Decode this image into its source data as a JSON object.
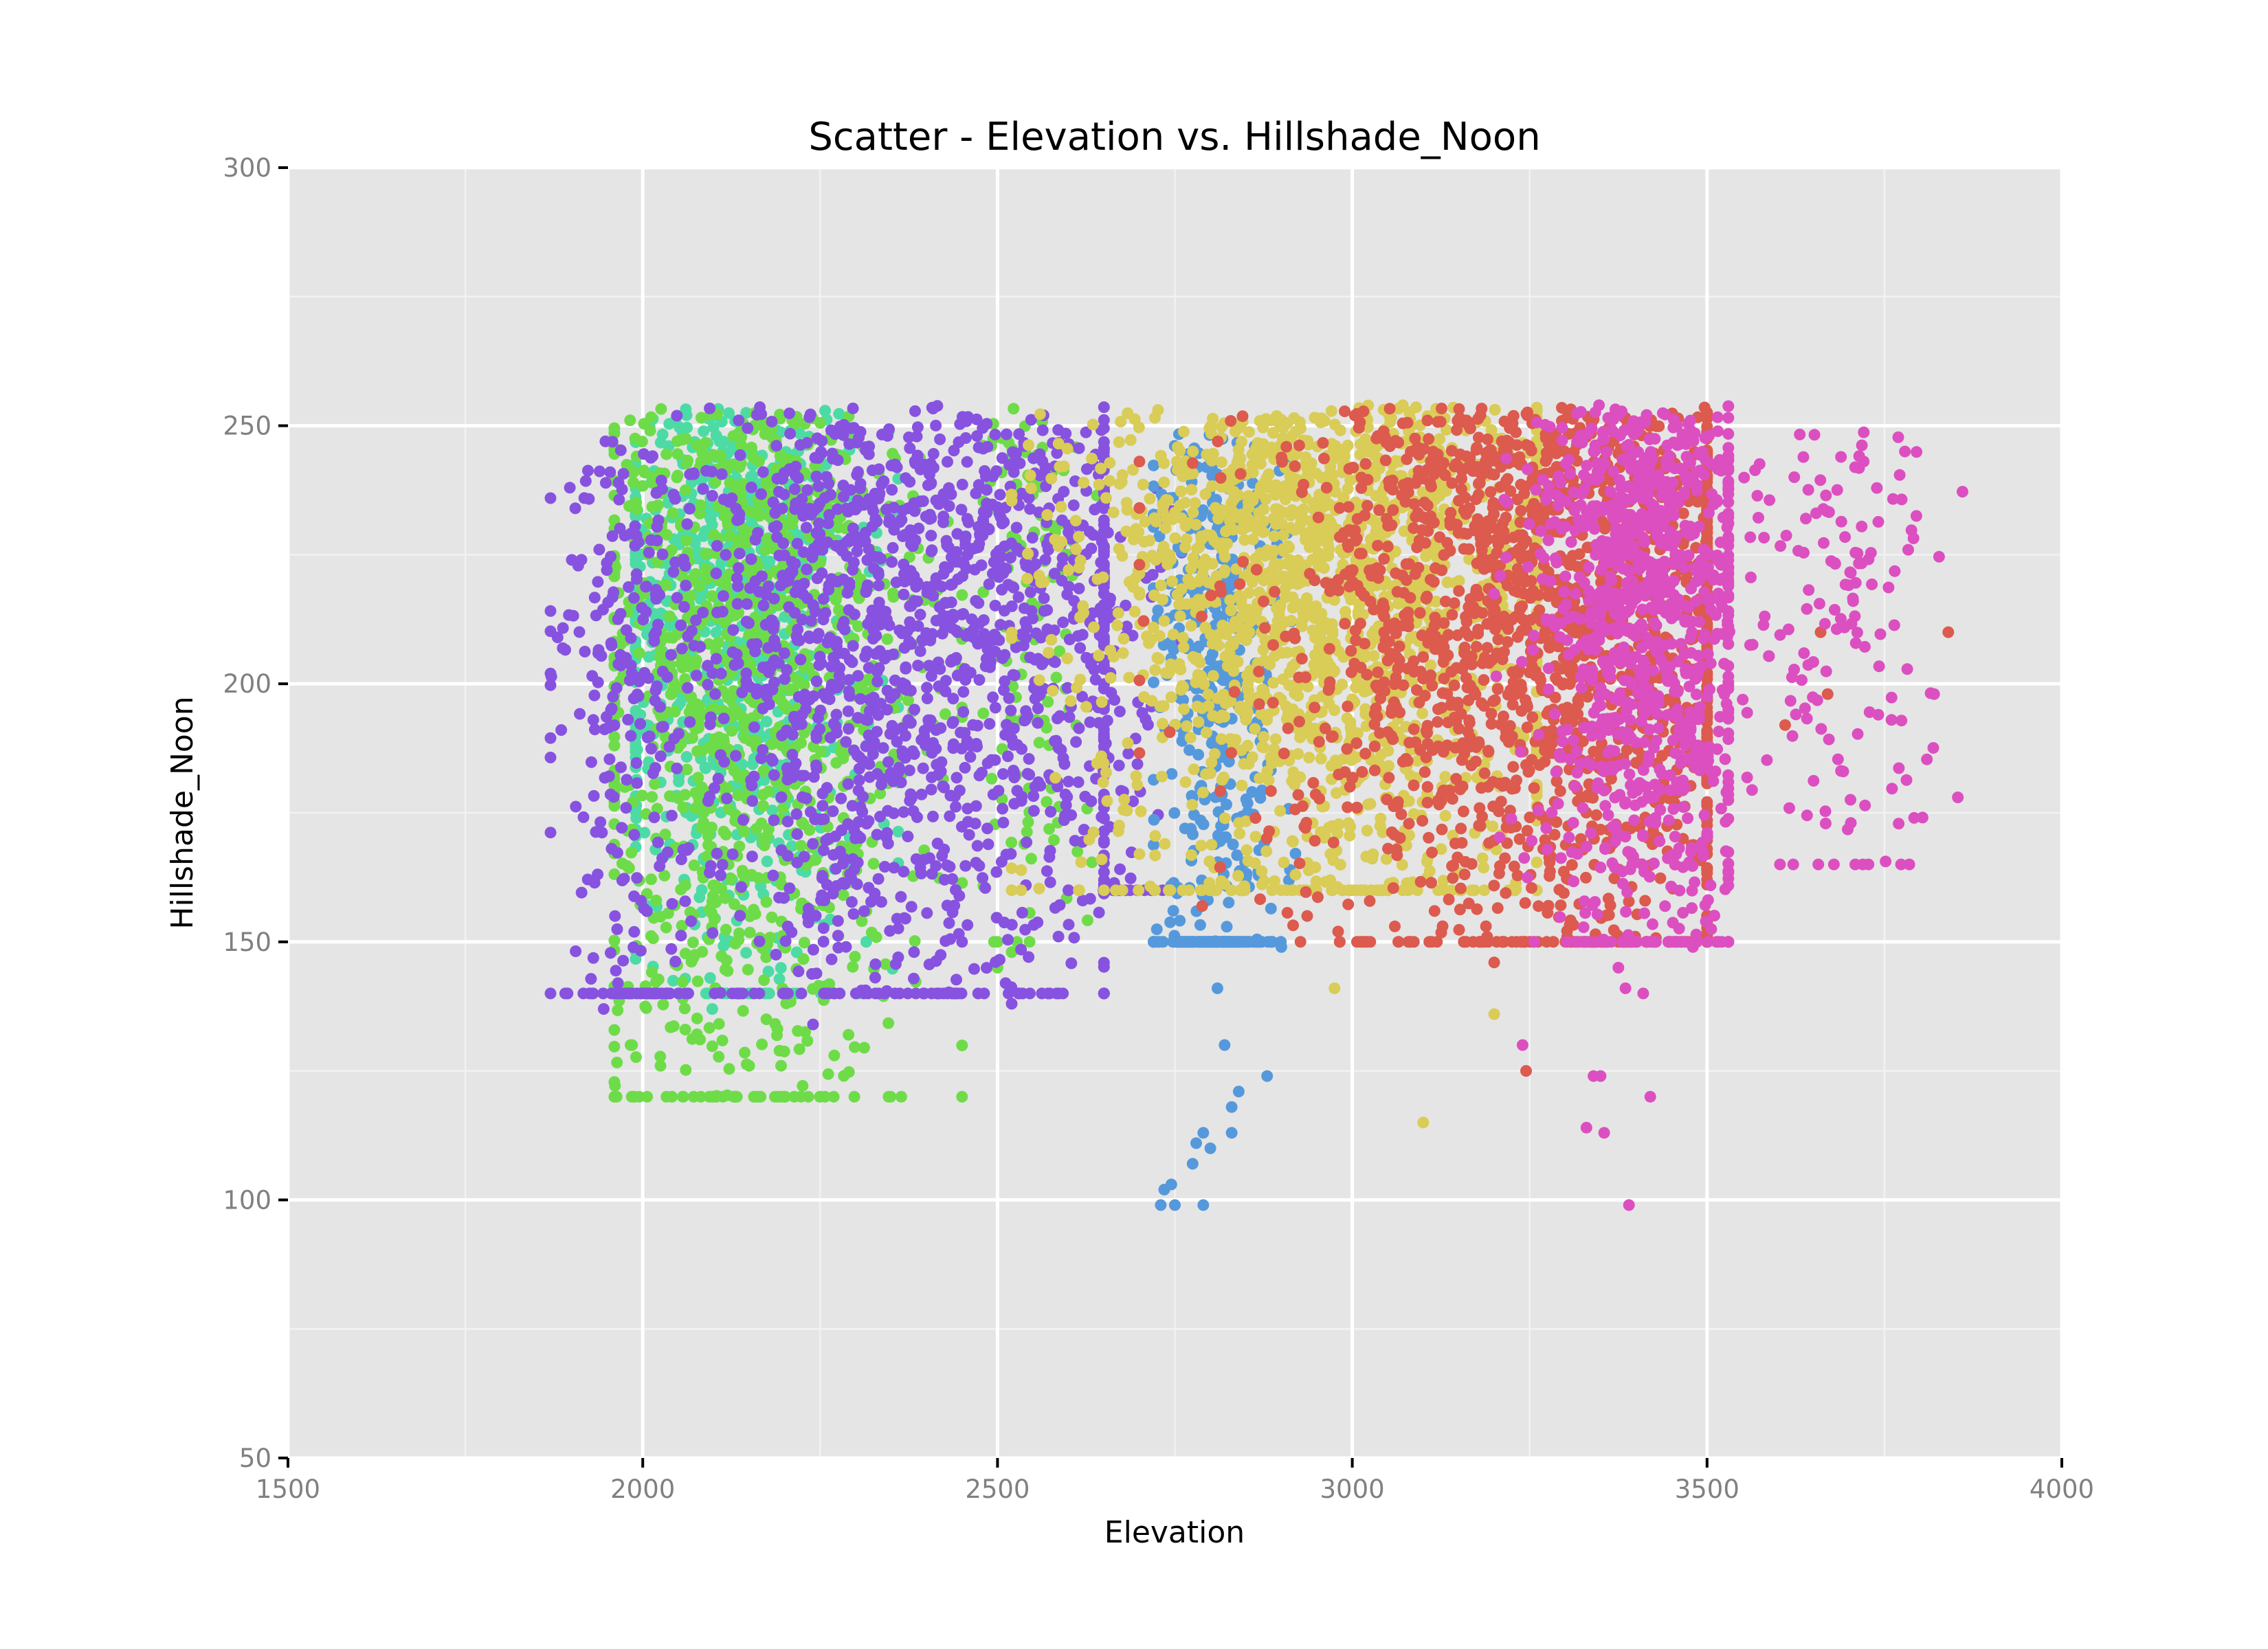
{
  "chart_data": {
    "type": "scatter",
    "title": "Scatter - Elevation vs. Hillshade_Noon",
    "xlabel": "Elevation",
    "ylabel": "Hillshade_Noon",
    "xlim": [
      1500,
      4000
    ],
    "ylim": [
      50,
      300
    ],
    "x_ticks": [
      1500,
      2000,
      2500,
      3000,
      3500,
      4000
    ],
    "y_ticks": [
      50,
      100,
      150,
      200,
      250,
      300
    ],
    "grid": true,
    "legend": "none",
    "colors": {
      "panel_background": "#e5e5e5",
      "grid_major": "#ffffff",
      "grid_minor": "#f2f2f2",
      "tick_mark": "#000000"
    },
    "series": [
      {
        "color": "#4cdba4",
        "clusters": [
          {
            "x": [
              1990,
              2360
            ],
            "y": [
              140,
              254
            ],
            "count": 800,
            "x_center": 2120,
            "y_center": 225
          }
        ],
        "points": [
          [
            2095,
            143
          ],
          [
            2098,
            137
          ],
          [
            2315,
            150
          ],
          [
            2005,
            232
          ],
          [
            2000,
            228
          ]
        ]
      },
      {
        "color": "#6edc48",
        "clusters": [
          {
            "x": [
              1960,
              2450
            ],
            "y": [
              120,
              254
            ],
            "count": 1100,
            "x_center": 2150,
            "y_center": 215
          },
          {
            "x": [
              2480,
              2640
            ],
            "y": [
              150,
              254
            ],
            "count": 120,
            "x_center": 2540,
            "y_center": 230
          }
        ],
        "points": [
          [
            1995,
            120
          ],
          [
            2025,
            126
          ],
          [
            1985,
            130
          ],
          [
            2270,
            128
          ],
          [
            2195,
            126
          ],
          [
            2150,
            126
          ],
          [
            2500,
            145
          ],
          [
            2520,
            148
          ],
          [
            2290,
            132
          ],
          [
            2060,
            133
          ]
        ]
      },
      {
        "color": "#8752e0",
        "clusters": [
          {
            "x": [
              1870,
              2650
            ],
            "y": [
              140,
              254
            ],
            "count": 1500,
            "x_center": 2380,
            "y_center": 215
          },
          {
            "x": [
              1870,
              2060
            ],
            "y": [
              140,
              250
            ],
            "count": 180,
            "x_center": 1980,
            "y_center": 185
          },
          {
            "x": [
              2600,
              2780
            ],
            "y": [
              160,
              240
            ],
            "count": 90,
            "x_center": 2670,
            "y_center": 195
          }
        ],
        "points": [
          [
            1870,
            202
          ],
          [
            1880,
            209
          ],
          [
            1900,
            224
          ],
          [
            1905,
            234
          ],
          [
            1945,
            137
          ],
          [
            1965,
            142
          ],
          [
            2240,
            134
          ],
          [
            2520,
            138
          ],
          [
            2360,
            147
          ],
          [
            2450,
            150
          ],
          [
            2620,
            158
          ]
        ]
      },
      {
        "color": "#5599dc",
        "clusters": [
          {
            "x": [
              2720,
              2920
            ],
            "y": [
              150,
              250
            ],
            "count": 480,
            "x_center": 2810,
            "y_center": 185
          }
        ],
        "points": [
          [
            2730,
            99
          ],
          [
            2750,
            99
          ],
          [
            2790,
            99
          ],
          [
            2735,
            102
          ],
          [
            2745,
            103
          ],
          [
            2775,
            107
          ],
          [
            2780,
            111
          ],
          [
            2790,
            113
          ],
          [
            2800,
            110
          ],
          [
            2830,
            113
          ],
          [
            2830,
            118
          ],
          [
            2840,
            121
          ],
          [
            2880,
            124
          ],
          [
            2820,
            130
          ],
          [
            2810,
            141
          ],
          [
            2900,
            149
          ]
        ]
      },
      {
        "color": "#d9cc57",
        "clusters": [
          {
            "x": [
              2520,
              3260
            ],
            "y": [
              160,
              254
            ],
            "count": 1700,
            "x_center": 2960,
            "y_center": 225
          }
        ],
        "points": [
          [
            2975,
            141
          ],
          [
            3100,
            115
          ],
          [
            3200,
            136
          ],
          [
            2920,
            163
          ],
          [
            3005,
            160
          ],
          [
            2700,
            167
          ],
          [
            2650,
            160
          ]
        ]
      },
      {
        "color": "#dc5a4e",
        "clusters": [
          {
            "x": [
              2700,
              3500
            ],
            "y": [
              150,
              254
            ],
            "count": 1800,
            "x_center": 3280,
            "y_center": 220
          }
        ],
        "points": [
          [
            3245,
            125
          ],
          [
            3190,
            151
          ],
          [
            3200,
            146
          ],
          [
            2980,
            152
          ],
          [
            3060,
            153
          ],
          [
            3610,
            192
          ],
          [
            3670,
            198
          ],
          [
            3660,
            210
          ],
          [
            3840,
            210
          ]
        ]
      },
      {
        "color": "#dc4fc0",
        "clusters": [
          {
            "x": [
              3200,
              3530
            ],
            "y": [
              150,
              254
            ],
            "count": 1000,
            "x_center": 3420,
            "y_center": 220
          },
          {
            "x": [
              3520,
              3860
            ],
            "y": [
              165,
              250
            ],
            "count": 160,
            "x_center": 3680,
            "y_center": 218
          }
        ],
        "points": [
          [
            3390,
            99
          ],
          [
            3330,
            114
          ],
          [
            3355,
            113
          ],
          [
            3340,
            124
          ],
          [
            3350,
            124
          ],
          [
            3420,
            120
          ],
          [
            3240,
            130
          ],
          [
            3385,
            141
          ],
          [
            3410,
            140
          ],
          [
            3375,
            145
          ],
          [
            3480,
            149
          ],
          [
            3820,
            198
          ],
          [
            3760,
            193
          ]
        ]
      }
    ]
  }
}
